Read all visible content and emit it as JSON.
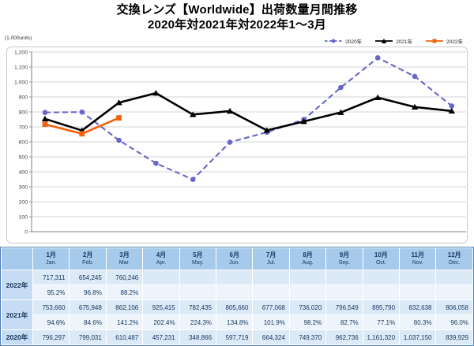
{
  "title": {
    "line1": "交換レンズ【Worldwide】出荷数量月間推移",
    "line2": "2020年対2021年対2022年1～3月"
  },
  "units_label": "(1,000units)",
  "chart_data": {
    "type": "line",
    "title": "交換レンズ【Worldwide】出荷数量月間推移 2020年対2021年対2022年1～3月",
    "xlabel": "",
    "ylabel": "(1,000units)",
    "categories_jp": [
      "1月",
      "2月",
      "3月",
      "4月",
      "5月",
      "6月",
      "7月",
      "8月",
      "9月",
      "10月",
      "11月",
      "12月"
    ],
    "categories_en": [
      "Jan.",
      "Feb.",
      "Mar.",
      "Apr.",
      "May.",
      "Jun.",
      "Jul.",
      "Aug.",
      "Sep.",
      "Oct.",
      "Nov.",
      "Dec."
    ],
    "ylim": [
      0,
      1200
    ],
    "ytick_step": 100,
    "grid": true,
    "legend_position": "top-right",
    "series": [
      {
        "name": "2020年",
        "color": "#6666CC",
        "line_style": "dashed",
        "marker": "circle",
        "values_1000units": [
          796.297,
          799.031,
          610.487,
          457.231,
          348.866,
          597.719,
          664.324,
          749.37,
          962.736,
          1161.32,
          1037.15,
          839.929
        ]
      },
      {
        "name": "2021年",
        "color": "#000000",
        "line_style": "solid",
        "marker": "triangle",
        "values_1000units": [
          753.66,
          675.948,
          862.106,
          925.415,
          782.435,
          805.66,
          677.068,
          736.02,
          796.549,
          895.79,
          832.638,
          806.058
        ]
      },
      {
        "name": "2022年",
        "color": "#F2620F",
        "line_style": "solid",
        "marker": "square",
        "values_1000units": [
          717.311,
          654.245,
          760.246
        ]
      }
    ]
  },
  "table": {
    "months": [
      {
        "jp": "1月",
        "en": "Jan."
      },
      {
        "jp": "2月",
        "en": "Feb."
      },
      {
        "jp": "3月",
        "en": "Mar."
      },
      {
        "jp": "4月",
        "en": "Apr."
      },
      {
        "jp": "5月",
        "en": "May."
      },
      {
        "jp": "6月",
        "en": "Jun."
      },
      {
        "jp": "7月",
        "en": "Jul."
      },
      {
        "jp": "8月",
        "en": "Aug."
      },
      {
        "jp": "9月",
        "en": "Sep."
      },
      {
        "jp": "10月",
        "en": "Oct."
      },
      {
        "jp": "11月",
        "en": "Nov."
      },
      {
        "jp": "12月",
        "en": "Dec."
      }
    ],
    "rows": [
      {
        "label": "2022年",
        "values": [
          "717,311",
          "654,245",
          "760,246",
          "",
          "",
          "",
          "",
          "",
          "",
          "",
          "",
          ""
        ],
        "pcts": [
          "95.2%",
          "96.8%",
          "88.2%",
          "",
          "",
          "",
          "",
          "",
          "",
          "",
          "",
          ""
        ]
      },
      {
        "label": "2021年",
        "values": [
          "753,660",
          "675,948",
          "862,106",
          "925,415",
          "782,435",
          "805,660",
          "677,068",
          "736,020",
          "796,549",
          "895,790",
          "832,638",
          "806,058"
        ],
        "pcts": [
          "94.6%",
          "84.6%",
          "141.2%",
          "202.4%",
          "224.3%",
          "134.8%",
          "101.9%",
          "98.2%",
          "82.7%",
          "77.1%",
          "80.3%",
          "96.0%"
        ]
      },
      {
        "label": "2020年",
        "values": [
          "796,297",
          "799,031",
          "610,487",
          "457,231",
          "348,866",
          "597,719",
          "664,324",
          "749,370",
          "962,736",
          "1,161,320",
          "1,037,150",
          "839,929"
        ],
        "pcts": null
      }
    ]
  },
  "colors": {
    "table_header_bg": "#A6CAEC",
    "table_label_bg": "#C5DCF2",
    "table_value_row_bg": "#DCE9F6",
    "table_pct_row_bg": "#EDF4FB",
    "series_2020": "#6666CC",
    "series_2021": "#000000",
    "series_2022": "#F2620F"
  }
}
